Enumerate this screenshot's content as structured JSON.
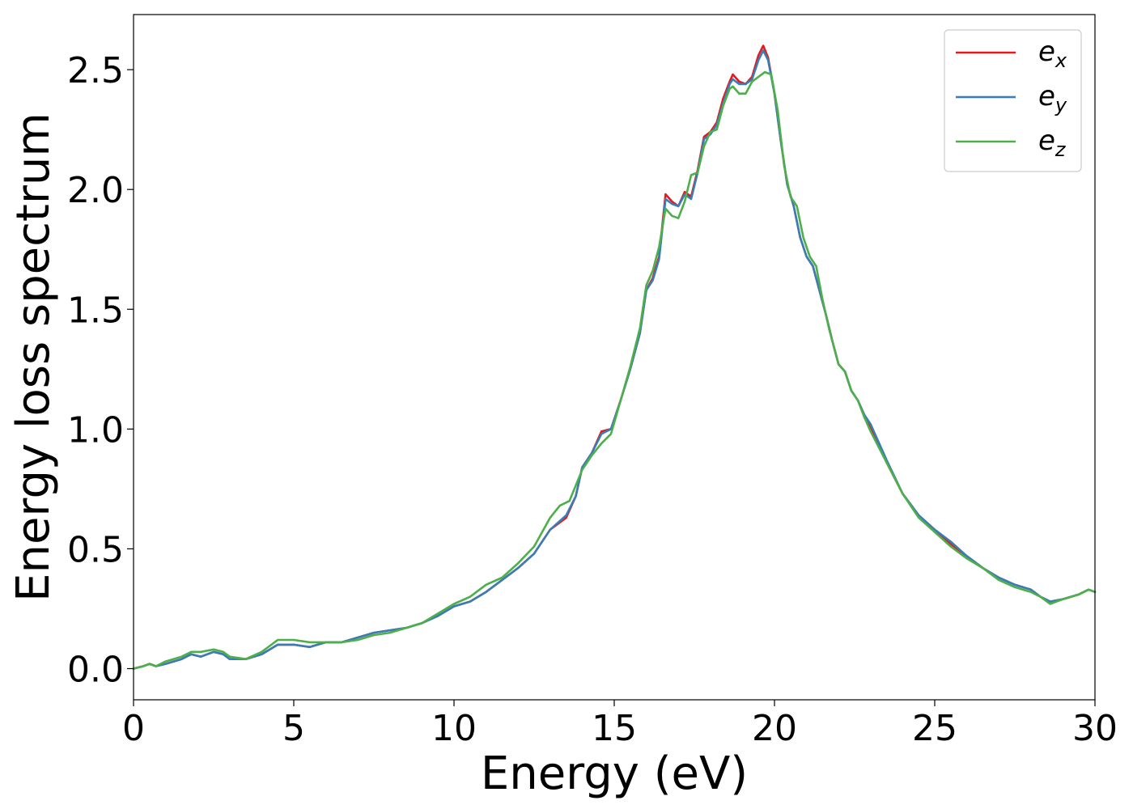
{
  "chart_data": {
    "type": "line",
    "xlabel": "Energy (eV)",
    "ylabel": "Energy loss spectrum",
    "xlim": [
      0,
      30
    ],
    "ylim": [
      -0.13,
      2.73
    ],
    "xticks": [
      "0",
      "5",
      "10",
      "15",
      "20",
      "25",
      "30"
    ],
    "yticks": [
      "0.0",
      "0.5",
      "1.0",
      "1.5",
      "2.0",
      "2.5"
    ],
    "grid": false,
    "legend_position": "top-right",
    "series": [
      {
        "name": "e_x",
        "legend_base": "e",
        "legend_sub": "x",
        "color": "#e41a1c",
        "points": [
          [
            0,
            0.0
          ],
          [
            0.3,
            0.01
          ],
          [
            0.5,
            0.02
          ],
          [
            0.7,
            0.01
          ],
          [
            1.0,
            0.02
          ],
          [
            1.5,
            0.04
          ],
          [
            1.8,
            0.06
          ],
          [
            2.1,
            0.05
          ],
          [
            2.5,
            0.07
          ],
          [
            2.8,
            0.06
          ],
          [
            3.0,
            0.04
          ],
          [
            3.5,
            0.04
          ],
          [
            4.0,
            0.06
          ],
          [
            4.5,
            0.1
          ],
          [
            5.0,
            0.1
          ],
          [
            5.5,
            0.09
          ],
          [
            6.0,
            0.11
          ],
          [
            6.5,
            0.11
          ],
          [
            7.0,
            0.13
          ],
          [
            7.5,
            0.15
          ],
          [
            8.0,
            0.16
          ],
          [
            8.5,
            0.17
          ],
          [
            9.0,
            0.19
          ],
          [
            9.5,
            0.22
          ],
          [
            10.0,
            0.26
          ],
          [
            10.5,
            0.28
          ],
          [
            11.0,
            0.32
          ],
          [
            11.5,
            0.37
          ],
          [
            12.0,
            0.42
          ],
          [
            12.5,
            0.48
          ],
          [
            13.0,
            0.58
          ],
          [
            13.5,
            0.63
          ],
          [
            13.8,
            0.72
          ],
          [
            14.0,
            0.84
          ],
          [
            14.3,
            0.9
          ],
          [
            14.6,
            0.99
          ],
          [
            14.9,
            1.0
          ],
          [
            15.2,
            1.12
          ],
          [
            15.5,
            1.25
          ],
          [
            15.8,
            1.4
          ],
          [
            16.0,
            1.58
          ],
          [
            16.2,
            1.63
          ],
          [
            16.4,
            1.72
          ],
          [
            16.6,
            1.98
          ],
          [
            16.8,
            1.95
          ],
          [
            17.0,
            1.93
          ],
          [
            17.2,
            1.99
          ],
          [
            17.4,
            1.97
          ],
          [
            17.6,
            2.08
          ],
          [
            17.8,
            2.22
          ],
          [
            18.0,
            2.24
          ],
          [
            18.2,
            2.28
          ],
          [
            18.4,
            2.38
          ],
          [
            18.6,
            2.45
          ],
          [
            18.7,
            2.48
          ],
          [
            18.9,
            2.45
          ],
          [
            19.1,
            2.44
          ],
          [
            19.3,
            2.47
          ],
          [
            19.5,
            2.56
          ],
          [
            19.65,
            2.6
          ],
          [
            19.8,
            2.55
          ],
          [
            20.0,
            2.4
          ],
          [
            20.2,
            2.2
          ],
          [
            20.4,
            2.02
          ],
          [
            20.6,
            1.93
          ],
          [
            20.8,
            1.8
          ],
          [
            21.0,
            1.72
          ],
          [
            21.2,
            1.68
          ],
          [
            21.4,
            1.58
          ],
          [
            21.6,
            1.48
          ],
          [
            21.8,
            1.37
          ],
          [
            22.0,
            1.27
          ],
          [
            22.2,
            1.24
          ],
          [
            22.4,
            1.16
          ],
          [
            22.6,
            1.12
          ],
          [
            22.8,
            1.06
          ],
          [
            23.0,
            1.01
          ],
          [
            23.5,
            0.86
          ],
          [
            24.0,
            0.73
          ],
          [
            24.5,
            0.64
          ],
          [
            25.0,
            0.58
          ],
          [
            25.5,
            0.52
          ],
          [
            26.0,
            0.47
          ],
          [
            26.5,
            0.42
          ],
          [
            27.0,
            0.38
          ],
          [
            27.5,
            0.35
          ],
          [
            28.0,
            0.33
          ],
          [
            28.3,
            0.3
          ],
          [
            28.6,
            0.28
          ],
          [
            29.0,
            0.29
          ],
          [
            29.5,
            0.31
          ],
          [
            29.8,
            0.33
          ],
          [
            30.0,
            0.32
          ]
        ]
      },
      {
        "name": "e_y",
        "legend_base": "e",
        "legend_sub": "y",
        "color": "#377eb8",
        "points": [
          [
            0,
            0.0
          ],
          [
            0.3,
            0.01
          ],
          [
            0.5,
            0.02
          ],
          [
            0.7,
            0.01
          ],
          [
            1.0,
            0.02
          ],
          [
            1.5,
            0.04
          ],
          [
            1.8,
            0.06
          ],
          [
            2.1,
            0.05
          ],
          [
            2.5,
            0.07
          ],
          [
            2.8,
            0.06
          ],
          [
            3.0,
            0.04
          ],
          [
            3.5,
            0.04
          ],
          [
            4.0,
            0.06
          ],
          [
            4.5,
            0.1
          ],
          [
            5.0,
            0.1
          ],
          [
            5.5,
            0.09
          ],
          [
            6.0,
            0.11
          ],
          [
            6.5,
            0.11
          ],
          [
            7.0,
            0.13
          ],
          [
            7.5,
            0.15
          ],
          [
            8.0,
            0.16
          ],
          [
            8.5,
            0.17
          ],
          [
            9.0,
            0.19
          ],
          [
            9.5,
            0.22
          ],
          [
            10.0,
            0.26
          ],
          [
            10.5,
            0.28
          ],
          [
            11.0,
            0.32
          ],
          [
            11.5,
            0.37
          ],
          [
            12.0,
            0.42
          ],
          [
            12.5,
            0.48
          ],
          [
            13.0,
            0.58
          ],
          [
            13.5,
            0.64
          ],
          [
            13.8,
            0.72
          ],
          [
            14.0,
            0.84
          ],
          [
            14.3,
            0.9
          ],
          [
            14.6,
            0.98
          ],
          [
            14.9,
            1.0
          ],
          [
            15.2,
            1.12
          ],
          [
            15.5,
            1.25
          ],
          [
            15.8,
            1.4
          ],
          [
            16.0,
            1.58
          ],
          [
            16.2,
            1.62
          ],
          [
            16.4,
            1.71
          ],
          [
            16.6,
            1.96
          ],
          [
            16.8,
            1.94
          ],
          [
            17.0,
            1.93
          ],
          [
            17.2,
            1.98
          ],
          [
            17.4,
            1.96
          ],
          [
            17.6,
            2.07
          ],
          [
            17.8,
            2.21
          ],
          [
            18.0,
            2.23
          ],
          [
            18.2,
            2.27
          ],
          [
            18.4,
            2.36
          ],
          [
            18.6,
            2.44
          ],
          [
            18.7,
            2.46
          ],
          [
            18.9,
            2.44
          ],
          [
            19.1,
            2.44
          ],
          [
            19.3,
            2.46
          ],
          [
            19.5,
            2.54
          ],
          [
            19.65,
            2.58
          ],
          [
            19.8,
            2.54
          ],
          [
            20.0,
            2.4
          ],
          [
            20.2,
            2.2
          ],
          [
            20.4,
            2.02
          ],
          [
            20.6,
            1.93
          ],
          [
            20.8,
            1.8
          ],
          [
            21.0,
            1.72
          ],
          [
            21.2,
            1.68
          ],
          [
            21.4,
            1.58
          ],
          [
            21.6,
            1.48
          ],
          [
            21.8,
            1.37
          ],
          [
            22.0,
            1.27
          ],
          [
            22.2,
            1.24
          ],
          [
            22.4,
            1.16
          ],
          [
            22.6,
            1.12
          ],
          [
            22.8,
            1.06
          ],
          [
            23.0,
            1.02
          ],
          [
            23.5,
            0.87
          ],
          [
            24.0,
            0.73
          ],
          [
            24.5,
            0.64
          ],
          [
            25.0,
            0.58
          ],
          [
            25.5,
            0.53
          ],
          [
            26.0,
            0.47
          ],
          [
            26.5,
            0.42
          ],
          [
            27.0,
            0.38
          ],
          [
            27.5,
            0.35
          ],
          [
            28.0,
            0.33
          ],
          [
            28.3,
            0.3
          ],
          [
            28.6,
            0.28
          ],
          [
            29.0,
            0.29
          ],
          [
            29.5,
            0.31
          ],
          [
            29.8,
            0.33
          ],
          [
            30.0,
            0.32
          ]
        ]
      },
      {
        "name": "e_z",
        "legend_base": "e",
        "legend_sub": "z",
        "color": "#4daf4a",
        "points": [
          [
            0,
            0.0
          ],
          [
            0.3,
            0.01
          ],
          [
            0.5,
            0.02
          ],
          [
            0.7,
            0.01
          ],
          [
            1.0,
            0.03
          ],
          [
            1.5,
            0.05
          ],
          [
            1.8,
            0.07
          ],
          [
            2.1,
            0.07
          ],
          [
            2.5,
            0.08
          ],
          [
            2.8,
            0.07
          ],
          [
            3.0,
            0.05
          ],
          [
            3.5,
            0.04
          ],
          [
            4.0,
            0.07
          ],
          [
            4.5,
            0.12
          ],
          [
            5.0,
            0.12
          ],
          [
            5.5,
            0.11
          ],
          [
            6.0,
            0.11
          ],
          [
            6.5,
            0.11
          ],
          [
            7.0,
            0.12
          ],
          [
            7.5,
            0.14
          ],
          [
            8.0,
            0.15
          ],
          [
            8.5,
            0.17
          ],
          [
            9.0,
            0.19
          ],
          [
            9.5,
            0.23
          ],
          [
            10.0,
            0.27
          ],
          [
            10.5,
            0.3
          ],
          [
            11.0,
            0.35
          ],
          [
            11.5,
            0.38
          ],
          [
            12.0,
            0.44
          ],
          [
            12.5,
            0.51
          ],
          [
            13.0,
            0.63
          ],
          [
            13.3,
            0.68
          ],
          [
            13.6,
            0.7
          ],
          [
            14.0,
            0.83
          ],
          [
            14.3,
            0.89
          ],
          [
            14.6,
            0.94
          ],
          [
            14.9,
            0.98
          ],
          [
            15.2,
            1.12
          ],
          [
            15.5,
            1.26
          ],
          [
            15.8,
            1.42
          ],
          [
            16.0,
            1.6
          ],
          [
            16.2,
            1.66
          ],
          [
            16.4,
            1.76
          ],
          [
            16.6,
            1.92
          ],
          [
            16.8,
            1.89
          ],
          [
            17.0,
            1.88
          ],
          [
            17.2,
            1.95
          ],
          [
            17.4,
            2.06
          ],
          [
            17.6,
            2.07
          ],
          [
            17.8,
            2.18
          ],
          [
            18.0,
            2.24
          ],
          [
            18.2,
            2.25
          ],
          [
            18.4,
            2.35
          ],
          [
            18.6,
            2.42
          ],
          [
            18.7,
            2.43
          ],
          [
            18.9,
            2.4
          ],
          [
            19.1,
            2.4
          ],
          [
            19.3,
            2.45
          ],
          [
            19.5,
            2.47
          ],
          [
            19.7,
            2.49
          ],
          [
            19.9,
            2.48
          ],
          [
            20.1,
            2.33
          ],
          [
            20.3,
            2.1
          ],
          [
            20.5,
            1.97
          ],
          [
            20.7,
            1.93
          ],
          [
            20.9,
            1.8
          ],
          [
            21.1,
            1.72
          ],
          [
            21.3,
            1.68
          ],
          [
            21.5,
            1.54
          ],
          [
            21.7,
            1.42
          ],
          [
            22.0,
            1.27
          ],
          [
            22.2,
            1.24
          ],
          [
            22.4,
            1.16
          ],
          [
            22.6,
            1.12
          ],
          [
            22.8,
            1.05
          ],
          [
            23.0,
            0.99
          ],
          [
            23.5,
            0.86
          ],
          [
            24.0,
            0.73
          ],
          [
            24.5,
            0.63
          ],
          [
            25.0,
            0.57
          ],
          [
            25.5,
            0.51
          ],
          [
            26.0,
            0.46
          ],
          [
            26.5,
            0.42
          ],
          [
            27.0,
            0.37
          ],
          [
            27.5,
            0.34
          ],
          [
            28.0,
            0.32
          ],
          [
            28.3,
            0.3
          ],
          [
            28.6,
            0.27
          ],
          [
            29.0,
            0.29
          ],
          [
            29.5,
            0.31
          ],
          [
            29.8,
            0.33
          ],
          [
            30.0,
            0.32
          ]
        ]
      }
    ]
  }
}
